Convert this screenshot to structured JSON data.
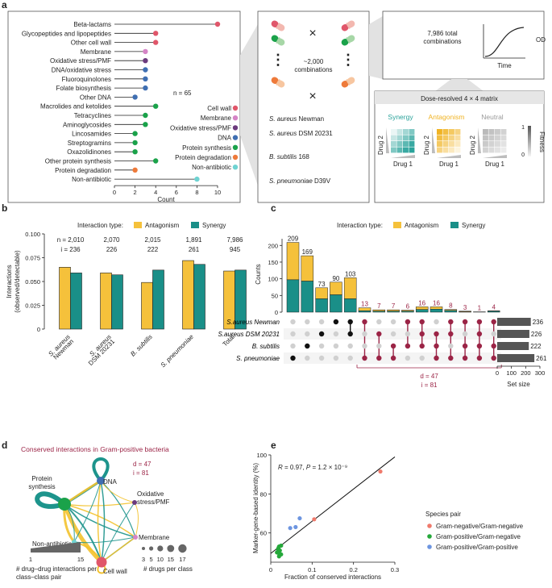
{
  "colors": {
    "antagonism": "#f5c13b",
    "synergy": "#1a8f88",
    "conserved": "#9b2446",
    "bar_grey": "#555555",
    "panel_grey": "#ececec"
  },
  "panels": {
    "a": "a",
    "b": "b",
    "c": "c",
    "d": "d",
    "e": "e"
  },
  "chart_data": [
    {
      "type": "lollipop",
      "id": "a",
      "xlabel": "Count",
      "xlim": [
        0,
        10
      ],
      "xticks": [
        "0",
        "2",
        "4",
        "6",
        "8",
        "10"
      ],
      "annotation": "n = 65",
      "categories": [
        "Beta-lactams",
        "Glycopeptides and lipopeptides",
        "Other cell wall",
        "Membrane",
        "Oxidative stress/PMF",
        "DNA/oxidative stress",
        "Fluoroquinolones",
        "Folate biosynthesis",
        "Other DNA",
        "Macrolides and ketolides",
        "Tetracyclines",
        "Aminoglycosides",
        "Lincosamides",
        "Streptogramins",
        "Oxazolidinones",
        "Other protein synthesis",
        "Protein degradation",
        "Non-antibiotic"
      ],
      "values": [
        10,
        4,
        4,
        3,
        3,
        3,
        3,
        3,
        2,
        4,
        3,
        3,
        2,
        2,
        2,
        4,
        2,
        8
      ],
      "point_class": [
        "Cell wall",
        "Cell wall",
        "Cell wall",
        "Membrane",
        "Oxidative stress/PMF",
        "DNA",
        "DNA",
        "DNA",
        "DNA",
        "Protein synthesis",
        "Protein synthesis",
        "Protein synthesis",
        "Protein synthesis",
        "Protein synthesis",
        "Protein synthesis",
        "Protein synthesis",
        "Protein degradation",
        "Non-antibiotic"
      ],
      "legend": [
        {
          "name": "Cell wall",
          "color": "#e0566a"
        },
        {
          "name": "Membrane",
          "color": "#d584c6"
        },
        {
          "name": "Oxidative stress/PMF",
          "color": "#6b3a7d"
        },
        {
          "name": "DNA",
          "color": "#3f6fb2"
        },
        {
          "name": "Protein synthesis",
          "color": "#1aa24a"
        },
        {
          "name": "Protein degradation",
          "color": "#ee7a3a"
        },
        {
          "name": "Non-antibiotic",
          "color": "#6fd3d2"
        }
      ]
    },
    {
      "type": "bar",
      "id": "b",
      "legend_title": "Interaction type:",
      "series_names": [
        "Antagonism",
        "Synergy"
      ],
      "ylabel": "Interactions\n(observed/detectable)",
      "ylim": [
        0,
        0.1
      ],
      "yticks": [
        "0",
        "0.025",
        "0.050",
        "0.075",
        "0.100"
      ],
      "categories": [
        [
          "S. aureus",
          "Newman"
        ],
        [
          "S. aureus",
          "DSM 20231"
        ],
        [
          "B. subtilis"
        ],
        [
          "S. pneumoniae"
        ],
        [
          "Total"
        ]
      ],
      "series": [
        {
          "name": "Antagonism",
          "values": [
            0.065,
            0.059,
            0.049,
            0.072,
            0.061
          ]
        },
        {
          "name": "Synergy",
          "values": [
            0.059,
            0.057,
            0.062,
            0.068,
            0.062
          ]
        }
      ],
      "n_labels": [
        "n = 2,010",
        "2,070",
        "2,015",
        "1,891",
        "7,986"
      ],
      "i_labels": [
        "i = 236",
        "226",
        "222",
        "261",
        "945"
      ]
    },
    {
      "type": "upset",
      "id": "c",
      "legend_title": "Interaction type:",
      "series_names": [
        "Antagonism",
        "Synergy"
      ],
      "ylabel": "Counts",
      "ylim": [
        0,
        220
      ],
      "yticks": [
        "0",
        "50",
        "100",
        "150",
        "200"
      ],
      "totals": [
        209,
        169,
        73,
        90,
        103,
        13,
        7,
        7,
        6,
        16,
        16,
        8,
        3,
        1,
        4
      ],
      "synergy": [
        97,
        93,
        40,
        52,
        40,
        4,
        3,
        3,
        3,
        8,
        9,
        5,
        1,
        1,
        3
      ],
      "sets": [
        "S.aureus Newman",
        "S.aureus DSM 20231",
        "B. subtilis",
        "S. pneumoniae"
      ],
      "membership": [
        [
          3
        ],
        [
          2
        ],
        [
          1
        ],
        [
          0
        ],
        [
          0,
          1
        ],
        [
          0,
          3
        ],
        [
          1,
          3
        ],
        [
          2,
          3
        ],
        [
          0,
          2
        ],
        [
          0,
          1,
          2
        ],
        [
          1,
          2,
          3
        ],
        [
          0,
          1,
          3
        ],
        [
          0,
          2,
          3
        ],
        [
          0,
          1,
          2,
          3
        ],
        [
          0,
          2,
          3
        ]
      ],
      "set_sizes": [
        236,
        226,
        222,
        261
      ],
      "set_size_label": "Set size",
      "set_xticks": [
        "0",
        "100",
        "200",
        "300"
      ],
      "conserved_d": "d = 47",
      "conserved_i": "i = 81"
    },
    {
      "type": "network",
      "id": "d",
      "title": "Conserved interactions in Gram-positive bacteria",
      "d_label": "d = 47",
      "i_label": "i = 81",
      "nodes": [
        {
          "name": "DNA",
          "color": "#3f6fb2",
          "size": 7
        },
        {
          "name": "Protein\nsynthesis",
          "color": "#1aa24a",
          "size": 13
        },
        {
          "name": "Oxidative\nstress/PMF",
          "color": "#6b3a7d",
          "size": 3
        },
        {
          "name": "Membrane",
          "color": "#d584c6",
          "size": 3
        },
        {
          "name": "Non-antibiotic",
          "color": "#6fd3d2",
          "size": 3
        },
        {
          "name": "Cell wall",
          "color": "#e0566a",
          "size": 10
        }
      ],
      "width_legend": {
        "min": "1",
        "max": "15",
        "caption": "# drug–drug interactions per\nclass–class pair"
      },
      "size_legend": {
        "values": [
          "3",
          "5",
          "10",
          "15",
          "17"
        ],
        "caption": "# drugs per class"
      }
    },
    {
      "type": "scatter",
      "id": "e",
      "annotation": "R = 0.97, P = 1.2 × 10⁻⁹",
      "xlabel": "Fraction of conserved interactions",
      "xlim": [
        0,
        0.3
      ],
      "xticks": [
        "0",
        "0.1",
        "0.2",
        "0.3"
      ],
      "ylabel": "Marker-gene-based identity (%)",
      "ylim": [
        45,
        100
      ],
      "yticks": [
        "60",
        "80",
        "100"
      ],
      "legend_title": "Species pair",
      "series": [
        {
          "name": "Gram-negative/Gram-negative",
          "color": "#ef7a6c",
          "points": [
            [
              0.265,
              91.5
            ],
            [
              0.105,
              67
            ]
          ]
        },
        {
          "name": "Gram-positive/Gram-negative",
          "color": "#25a83a",
          "points": [
            [
              0.02,
              53
            ],
            [
              0.025,
              53.5
            ],
            [
              0.018,
              52
            ],
            [
              0.022,
              51
            ],
            [
              0.015,
              50
            ],
            [
              0.02,
              49.5
            ],
            [
              0.025,
              49
            ],
            [
              0.018,
              51.5
            ],
            [
              0.02,
              48
            ]
          ]
        },
        {
          "name": "Gram-positive/Gram-positive",
          "color": "#6d95e0",
          "points": [
            [
              0.07,
              67.5
            ],
            [
              0.06,
              63
            ],
            [
              0.047,
              62.5
            ]
          ]
        }
      ],
      "fit": [
        [
          0,
          49.5
        ],
        [
          0.3,
          99
        ]
      ]
    }
  ],
  "schematic": {
    "x_sign": "×",
    "ellipsis": "⋮",
    "combos": "~2,000\ncombinations",
    "strains": [
      "S. aureus Newman",
      "S. aureus DSM 20231",
      "B. subtilis 168",
      "S. pneumoniae D39V"
    ],
    "total": "7,986 total\ncombinations",
    "od": "OD",
    "time": "Time",
    "matrix_title": "Dose-resolved 4 × 4 matrix",
    "matrices": [
      {
        "name": "Synergy",
        "color": "#2ba39b"
      },
      {
        "name": "Antagonism",
        "color": "#f0b323"
      },
      {
        "name": "Neutral",
        "color": "#9a9a9a"
      }
    ],
    "drug1": "Drug 1",
    "drug2": "Drug 2",
    "fitness": "Fitness",
    "fitness_hi": "1",
    "fitness_lo": "0"
  }
}
